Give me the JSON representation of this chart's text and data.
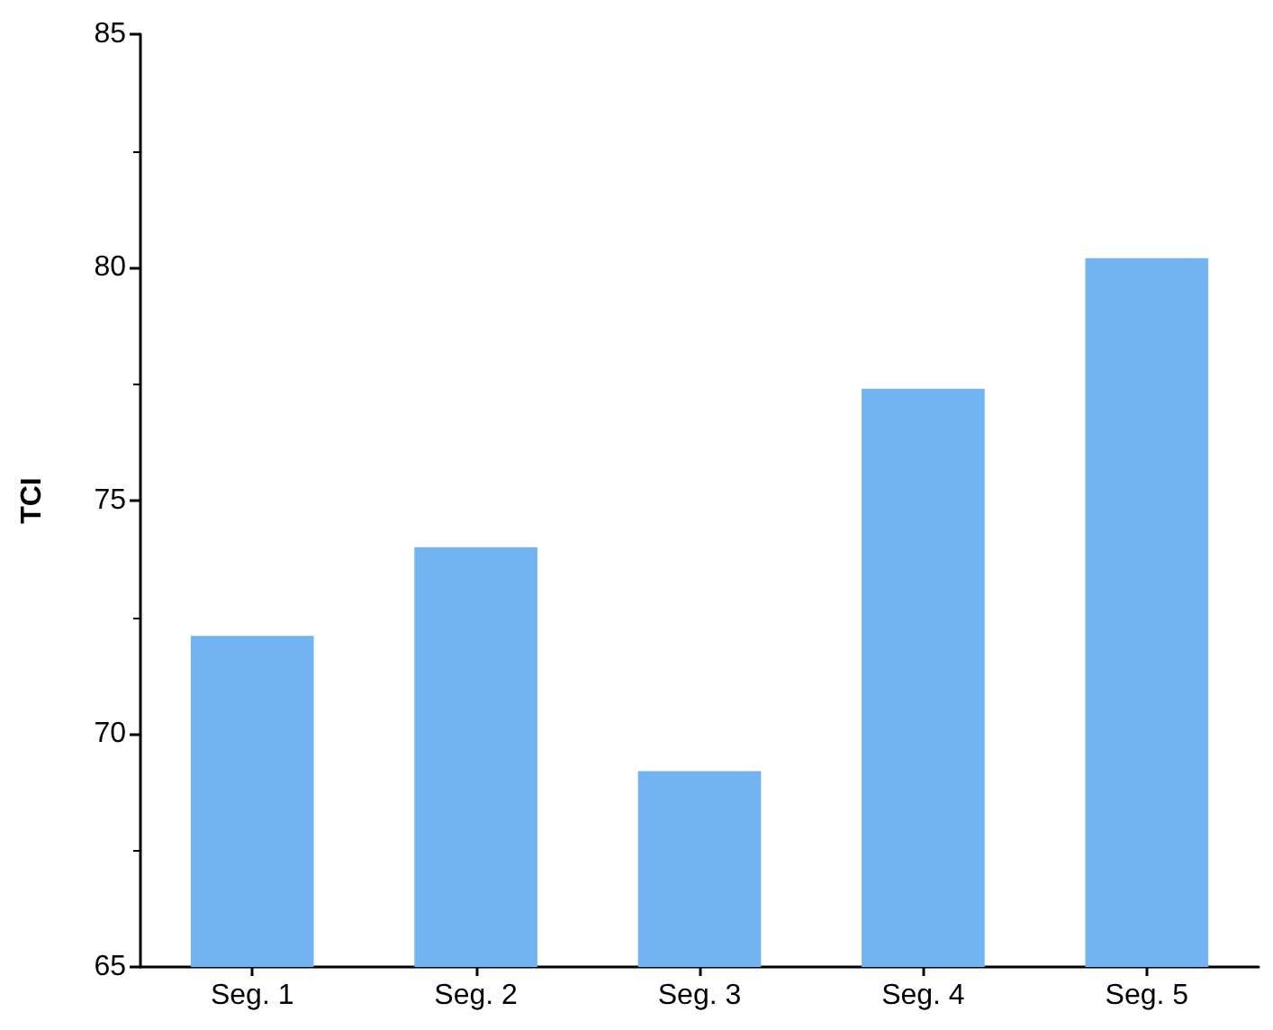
{
  "chart_data": {
    "type": "bar",
    "ylabel": "TCI",
    "categories": [
      "Seg. 1",
      "Seg. 2",
      "Seg. 3",
      "Seg. 4",
      "Seg. 5"
    ],
    "values": [
      72.1,
      74.0,
      69.2,
      77.4,
      80.2
    ],
    "color": "#72b4f2",
    "ylim": [
      65,
      85
    ],
    "yticks": [
      65,
      70,
      75,
      80,
      85
    ],
    "grid": false
  }
}
